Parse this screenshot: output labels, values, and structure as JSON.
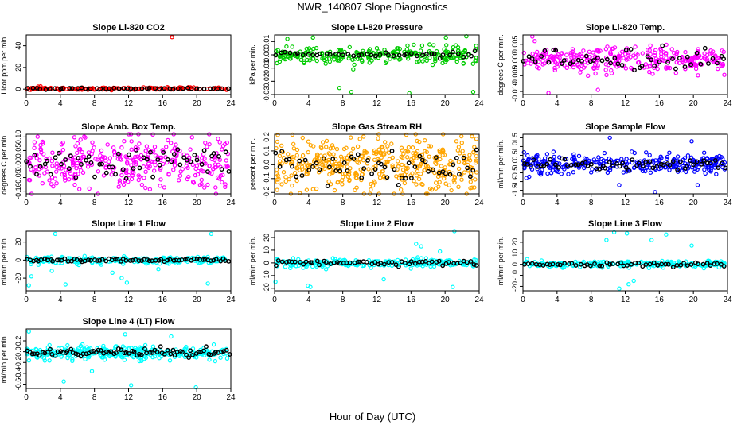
{
  "figure": {
    "title": "NWR_140807  Slope Diagnostics",
    "xlabel": "Hour of Day (UTC)"
  },
  "chart_data": [
    {
      "type": "scatter",
      "title": "Slope Li-820 CO2",
      "ylabel": "Licor ppm per min.",
      "xlim": [
        0,
        24
      ],
      "xticks": [
        0,
        4,
        8,
        12,
        16,
        20,
        24
      ],
      "ylim": [
        -5,
        50
      ],
      "yticks": [
        0,
        20,
        40
      ],
      "yticklabels": [
        "0",
        "20",
        "40"
      ],
      "color": "#ff0000",
      "black_color": "#000000",
      "spread": 1.2,
      "bspread": 0.8,
      "center": 0.5,
      "n": 160,
      "nb": 45,
      "seed": 11,
      "outliers": [
        [
          17.1,
          48
        ]
      ]
    },
    {
      "type": "scatter",
      "title": "Slope Li-820 Pressure",
      "ylabel": "kPa per min.",
      "xlim": [
        0,
        24
      ],
      "xticks": [
        0,
        4,
        8,
        12,
        16,
        20,
        24
      ],
      "ylim": [
        -0.03,
        0.015
      ],
      "yticks": [
        -0.03,
        -0.02,
        -0.01,
        0,
        0.01
      ],
      "yticklabels": [
        "-0.03",
        "-0.02",
        "-0.01",
        "0.00",
        "0.01"
      ],
      "color": "#00cc00",
      "black_color": "#000000",
      "spread": 0.006,
      "bspread": 0.002,
      "center": 0.0,
      "n": 260,
      "nb": 45,
      "seed": 23,
      "outliers": [
        [
          1.5,
          0.012
        ],
        [
          4.5,
          0.013
        ],
        [
          7.6,
          -0.025
        ],
        [
          9.0,
          -0.028
        ],
        [
          15.8,
          -0.029
        ],
        [
          20.1,
          0.013
        ],
        [
          23.3,
          -0.028
        ],
        [
          22.5,
          0.014
        ]
      ]
    },
    {
      "type": "scatter",
      "title": "Slope Li-820 Temp.",
      "ylabel": "degrees C per min.",
      "xlim": [
        0,
        24
      ],
      "xticks": [
        0,
        4,
        8,
        12,
        16,
        20,
        24
      ],
      "ylim": [
        -0.011,
        0.008
      ],
      "yticks": [
        -0.01,
        -0.005,
        0,
        0.005
      ],
      "yticklabels": [
        "-0.010",
        "-0.005",
        "0.000",
        "0.005"
      ],
      "color": "#ff00ff",
      "black_color": "#000000",
      "spread": 0.004,
      "bspread": 0.003,
      "center": 0.0,
      "n": 300,
      "nb": 50,
      "seed": 37,
      "outliers": [
        [
          1.1,
          0.0075
        ],
        [
          3.0,
          -0.0105
        ],
        [
          8.8,
          -0.0095
        ]
      ]
    },
    {
      "type": "scatter",
      "title": "Slope Amb. Box Temp.",
      "ylabel": "degrees C per min.",
      "xlim": [
        0,
        24
      ],
      "xticks": [
        0,
        4,
        8,
        12,
        16,
        20,
        24
      ],
      "ylim": [
        -0.11,
        0.11
      ],
      "yticks": [
        -0.1,
        -0.05,
        0,
        0.05,
        0.1
      ],
      "yticklabels": [
        "-0.10",
        "-0.05",
        "0.00",
        "0.05",
        "0.10"
      ],
      "color": "#ff00ff",
      "black_color": "#000000",
      "spread": 0.1,
      "bspread": 0.06,
      "center": 0.0,
      "n": 340,
      "nb": 60,
      "seed": 41,
      "outliers": []
    },
    {
      "type": "scatter",
      "title": "Slope Gas Stream RH",
      "ylabel": "percent per min.",
      "xlim": [
        0,
        24
      ],
      "xticks": [
        0,
        4,
        8,
        12,
        16,
        20,
        24
      ],
      "ylim": [
        -0.21,
        0.22
      ],
      "yticks": [
        -0.2,
        -0.1,
        0,
        0.1,
        0.2
      ],
      "yticklabels": [
        "-0.2",
        "-0.1",
        "0.0",
        "0.1",
        "0.2"
      ],
      "color": "#ffa500",
      "black_color": "#000000",
      "spread": 0.2,
      "bspread": 0.12,
      "center": 0.0,
      "n": 420,
      "nb": 60,
      "seed": 53,
      "outliers": []
    },
    {
      "type": "scatter",
      "title": "Slope Sample Flow",
      "ylabel": "ml/min per min.",
      "xlim": [
        0,
        24
      ],
      "xticks": [
        0,
        4,
        8,
        12,
        16,
        20,
        24
      ],
      "ylim": [
        -1.7,
        1.7
      ],
      "yticks": [
        -1.5,
        -1,
        -0.5,
        0,
        0.5,
        1,
        1.5
      ],
      "yticklabels": [
        "-1.5",
        "-1.0",
        "-0.5",
        "0.0",
        "0.5",
        "1.0",
        "1.5"
      ],
      "color": "#0000ff",
      "black_color": "#000000",
      "spread": 0.5,
      "bspread": 0.3,
      "center": 0.0,
      "n": 300,
      "nb": 60,
      "seed": 67,
      "outliers": [
        [
          10.2,
          1.5
        ],
        [
          11.3,
          -1.2
        ],
        [
          15.5,
          -1.6
        ],
        [
          20.5,
          -1.2
        ],
        [
          19.8,
          1.3
        ],
        [
          0.4,
          -0.8
        ]
      ]
    },
    {
      "type": "scatter",
      "title": "Slope Line 1 Flow",
      "ylabel": "ml/min per min.",
      "xlim": [
        0,
        24
      ],
      "xticks": [
        0,
        4,
        8,
        12,
        16,
        20,
        24
      ],
      "ylim": [
        -34,
        32
      ],
      "yticks": [
        -20,
        0,
        20
      ],
      "yticklabels": [
        "-20",
        "0",
        "20"
      ],
      "color": "#00ffff",
      "black_color": "#000000",
      "spread": 4,
      "bspread": 1.5,
      "center": 0.0,
      "n": 220,
      "nb": 70,
      "seed": 71,
      "outliers": [
        [
          0.3,
          -28
        ],
        [
          0.6,
          -18
        ],
        [
          3.4,
          29
        ],
        [
          4.6,
          -27
        ],
        [
          10.1,
          -14
        ],
        [
          11.2,
          -20
        ],
        [
          11.8,
          -25
        ],
        [
          15.5,
          -10
        ],
        [
          21.3,
          -26
        ],
        [
          21.7,
          29
        ],
        [
          3.0,
          -12
        ]
      ]
    },
    {
      "type": "scatter",
      "title": "Slope Line 2 Flow",
      "ylabel": "ml/min per min.",
      "xlim": [
        0,
        24
      ],
      "xticks": [
        0,
        4,
        8,
        12,
        16,
        20,
        24
      ],
      "ylim": [
        -22,
        25
      ],
      "yticks": [
        -20,
        -10,
        0,
        10,
        20
      ],
      "yticklabels": [
        "-20",
        "-10",
        "0",
        "10",
        "20"
      ],
      "color": "#00ffff",
      "black_color": "#000000",
      "spread": 3,
      "bspread": 2,
      "center": 0.0,
      "n": 240,
      "nb": 60,
      "seed": 83,
      "outliers": [
        [
          16.6,
          15
        ],
        [
          17.2,
          13
        ],
        [
          19.4,
          9
        ],
        [
          20.9,
          -19
        ],
        [
          21.1,
          25
        ],
        [
          3.9,
          -18
        ],
        [
          4.2,
          -19
        ],
        [
          0.1,
          -15
        ],
        [
          12.8,
          -13
        ]
      ]
    },
    {
      "type": "scatter",
      "title": "Slope Line 3 Flow",
      "ylabel": "ml/min per min.",
      "xlim": [
        0,
        24
      ],
      "xticks": [
        0,
        4,
        8,
        12,
        16,
        20,
        24
      ],
      "ylim": [
        -24,
        30
      ],
      "yticks": [
        -20,
        -10,
        0,
        10,
        20
      ],
      "yticklabels": [
        "-20",
        "-10",
        "0",
        "10",
        "20"
      ],
      "color": "#00ffff",
      "black_color": "#000000",
      "spread": 3,
      "bspread": 2,
      "center": 0.0,
      "n": 240,
      "nb": 55,
      "seed": 97,
      "outliers": [
        [
          9.8,
          22
        ],
        [
          10.7,
          29
        ],
        [
          12.2,
          28
        ],
        [
          15.1,
          22
        ],
        [
          16.8,
          27
        ],
        [
          11.3,
          -22
        ],
        [
          12.4,
          -18
        ],
        [
          13.0,
          -15
        ],
        [
          19.8,
          17
        ]
      ]
    },
    {
      "type": "scatter",
      "title": "Slope Line 4 (LT) Flow",
      "ylabel": "ml/min per min.",
      "xlim": [
        0,
        24
      ],
      "xticks": [
        0,
        4,
        8,
        12,
        16,
        20,
        24
      ],
      "ylim": [
        -0.68,
        0.42
      ],
      "yticks": [
        -0.6,
        -0.4,
        -0.2,
        0,
        0.2
      ],
      "yticklabels": [
        "-0.6",
        "-0.4",
        "-0.2",
        "0.0",
        "0.2"
      ],
      "color": "#00ffff",
      "black_color": "#000000",
      "spread": 0.12,
      "bspread": 0.08,
      "center": -0.02,
      "n": 320,
      "nb": 80,
      "seed": 101,
      "outliers": [
        [
          0.3,
          0.37
        ],
        [
          4.4,
          -0.55
        ],
        [
          12.3,
          -0.62
        ],
        [
          19.9,
          -0.66
        ],
        [
          11.6,
          0.32
        ],
        [
          17.0,
          0.28
        ],
        [
          7.7,
          -0.36
        ]
      ]
    }
  ]
}
